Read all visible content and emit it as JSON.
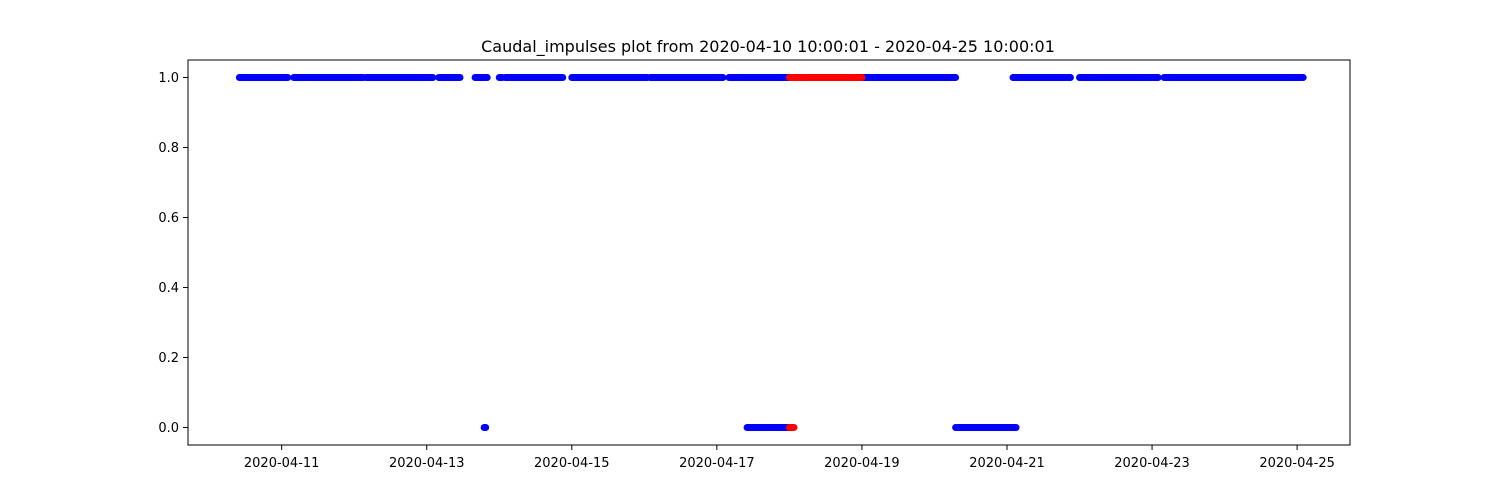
{
  "chart_data": {
    "type": "scatter",
    "title": "Caudal_impulses plot from 2020-04-10 10:00:01 - 2020-04-25 10:00:01",
    "xlabel": "",
    "ylabel": "",
    "xlim": [
      "2020-04-09T17:00:00",
      "2020-04-25T17:30:00"
    ],
    "ylim": [
      -0.05,
      1.05
    ],
    "x_ticks": [
      "2020-04-11",
      "2020-04-13",
      "2020-04-15",
      "2020-04-17",
      "2020-04-19",
      "2020-04-21",
      "2020-04-23",
      "2020-04-25"
    ],
    "y_ticks": [
      0.0,
      0.2,
      0.4,
      0.6,
      0.8,
      1.0
    ],
    "y_tick_labels": [
      "0.0",
      "0.2",
      "0.4",
      "0.6",
      "0.8",
      "1.0"
    ],
    "grid": false,
    "colors": {
      "normal": "#0000ff",
      "highlight": "#ff0000"
    },
    "series": [
      {
        "color": "normal",
        "segments": [
          {
            "y": 1,
            "start": "2020-04-10T10:00:00",
            "end": "2020-04-11T02:00:00"
          },
          {
            "y": 1,
            "start": "2020-04-11T04:00:00",
            "end": "2020-04-12T03:00:00"
          },
          {
            "y": 1,
            "start": "2020-04-12T04:00:00",
            "end": "2020-04-13T02:00:00"
          },
          {
            "y": 1,
            "start": "2020-04-13T04:00:00",
            "end": "2020-04-13T11:00:00"
          },
          {
            "y": 1,
            "start": "2020-04-13T16:00:00",
            "end": "2020-04-13T20:00:00"
          },
          {
            "y": 1,
            "start": "2020-04-14T00:00:00",
            "end": "2020-04-14T01:00:00"
          },
          {
            "y": 1,
            "start": "2020-04-14T02:00:00",
            "end": "2020-04-14T21:00:00"
          },
          {
            "y": 1,
            "start": "2020-04-15T00:00:00",
            "end": "2020-04-16T01:00:00"
          },
          {
            "y": 1,
            "start": "2020-04-16T02:00:00",
            "end": "2020-04-17T02:00:00"
          },
          {
            "y": 1,
            "start": "2020-04-17T04:00:00",
            "end": "2020-04-18T00:00:00"
          },
          {
            "y": 1,
            "start": "2020-04-19T00:00:00",
            "end": "2020-04-20T07:00:00"
          },
          {
            "y": 1,
            "start": "2020-04-21T02:00:00",
            "end": "2020-04-21T21:00:00"
          },
          {
            "y": 1,
            "start": "2020-04-22T00:00:00",
            "end": "2020-04-23T02:00:00"
          },
          {
            "y": 1,
            "start": "2020-04-23T04:00:00",
            "end": "2020-04-25T02:00:00"
          },
          {
            "y": 0,
            "start": "2020-04-13T19:00:00",
            "end": "2020-04-13T19:30:00"
          },
          {
            "y": 0,
            "start": "2020-04-17T10:00:00",
            "end": "2020-04-18T00:00:00"
          },
          {
            "y": 0,
            "start": "2020-04-20T07:00:00",
            "end": "2020-04-21T03:00:00"
          }
        ]
      },
      {
        "color": "highlight",
        "segments": [
          {
            "y": 1,
            "start": "2020-04-18T00:00:00",
            "end": "2020-04-19T00:00:00"
          },
          {
            "y": 0,
            "start": "2020-04-18T00:00:00",
            "end": "2020-04-18T01:30:00"
          }
        ]
      }
    ]
  }
}
